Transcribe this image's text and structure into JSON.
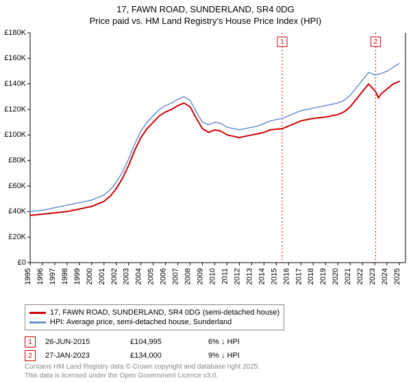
{
  "title": {
    "line1": "17, FAWN ROAD, SUNDERLAND, SR4 0DG",
    "line2": "Price paid vs. HM Land Registry's House Price Index (HPI)"
  },
  "chart": {
    "type": "line",
    "background_color": "#ffffff",
    "axis_color": "#000000",
    "xlim": [
      1995,
      2025.5
    ],
    "ylim": [
      0,
      180000
    ],
    "ytick_step": 20000,
    "yticks": [
      {
        "v": 0,
        "label": "£0"
      },
      {
        "v": 20000,
        "label": "£20K"
      },
      {
        "v": 40000,
        "label": "£40K"
      },
      {
        "v": 60000,
        "label": "£60K"
      },
      {
        "v": 80000,
        "label": "£80K"
      },
      {
        "v": 100000,
        "label": "£100K"
      },
      {
        "v": 120000,
        "label": "£120K"
      },
      {
        "v": 140000,
        "label": "£140K"
      },
      {
        "v": 160000,
        "label": "£160K"
      },
      {
        "v": 180000,
        "label": "£180K"
      }
    ],
    "xticks": [
      1995,
      1996,
      1997,
      1998,
      1999,
      2000,
      2001,
      2002,
      2003,
      2004,
      2005,
      2006,
      2007,
      2008,
      2009,
      2010,
      2011,
      2012,
      2013,
      2014,
      2015,
      2016,
      2017,
      2018,
      2019,
      2020,
      2021,
      2022,
      2023,
      2024,
      2025
    ],
    "series": [
      {
        "id": "subject",
        "label": "17, FAWN ROAD, SUNDERLAND, SR4 0DG (semi-detached house)",
        "color": "#cc0000",
        "width": 2,
        "x": [
          1995,
          1995.5,
          1996,
          1996.5,
          1997,
          1997.5,
          1998,
          1998.5,
          1999,
          1999.5,
          2000,
          2000.5,
          2001,
          2001.5,
          2002,
          2002.5,
          2003,
          2003.5,
          2004,
          2004.5,
          2005,
          2005.5,
          2006,
          2006.5,
          2007,
          2007.5,
          2008,
          2008.5,
          2009,
          2009.5,
          2010,
          2010.5,
          2011,
          2011.5,
          2012,
          2012.5,
          2013,
          2013.5,
          2014,
          2014.5,
          2015,
          2015.48,
          2015.5,
          2016,
          2016.5,
          2017,
          2017.5,
          2018,
          2018.5,
          2019,
          2019.5,
          2020,
          2020.5,
          2021,
          2021.5,
          2022,
          2022.5,
          2023.07,
          2023.3,
          2023.5,
          2024,
          2024.5,
          2025
        ],
        "y": [
          37000,
          37500,
          38000,
          38500,
          39000,
          39500,
          40000,
          41000,
          42000,
          43000,
          44000,
          46000,
          48000,
          52000,
          58000,
          66000,
          76000,
          88000,
          98000,
          105000,
          110000,
          115000,
          118000,
          120000,
          123000,
          125000,
          122000,
          113000,
          105000,
          102000,
          104000,
          103000,
          100000,
          99000,
          98000,
          99000,
          100000,
          101000,
          102000,
          104000,
          104500,
          104995,
          105000,
          107000,
          109000,
          111000,
          112000,
          113000,
          113500,
          114000,
          115000,
          116000,
          118000,
          122000,
          128000,
          134000,
          140000,
          134000,
          129000,
          132000,
          136000,
          140000,
          142000
        ]
      },
      {
        "id": "hpi",
        "label": "HPI: Average price, semi-detached house, Sunderland",
        "color": "#6a8fd0",
        "width": 1.5,
        "x": [
          1995,
          1995.5,
          1996,
          1996.5,
          1997,
          1997.5,
          1998,
          1998.5,
          1999,
          1999.5,
          2000,
          2000.5,
          2001,
          2001.5,
          2002,
          2002.5,
          2003,
          2003.5,
          2004,
          2004.5,
          2005,
          2005.5,
          2006,
          2006.5,
          2007,
          2007.5,
          2008,
          2008.5,
          2009,
          2009.5,
          2010,
          2010.5,
          2011,
          2011.5,
          2012,
          2012.5,
          2013,
          2013.5,
          2014,
          2014.5,
          2015,
          2015.5,
          2016,
          2016.5,
          2017,
          2017.5,
          2018,
          2018.5,
          2019,
          2019.5,
          2020,
          2020.5,
          2021,
          2021.5,
          2022,
          2022.5,
          2023,
          2023.5,
          2024,
          2024.5,
          2025
        ],
        "y": [
          40000,
          40500,
          41000,
          42000,
          43000,
          44000,
          45000,
          46000,
          47000,
          48000,
          49000,
          51000,
          53000,
          57000,
          63000,
          71000,
          81000,
          93000,
          103000,
          110000,
          115000,
          120000,
          123000,
          125000,
          128000,
          130000,
          127000,
          118000,
          110000,
          108000,
          110000,
          109000,
          106000,
          105000,
          104000,
          105000,
          106000,
          107000,
          109000,
          111000,
          112000,
          113000,
          115000,
          117000,
          119000,
          120000,
          121000,
          122000,
          123000,
          124000,
          125000,
          127000,
          131000,
          137000,
          143000,
          149000,
          147000,
          148000,
          150000,
          153000,
          156000
        ]
      }
    ],
    "markers": [
      {
        "n": "1",
        "x": 2015.48,
        "date": "26-JUN-2015",
        "price": "£104,995",
        "diff": "6% ↓ HPI"
      },
      {
        "n": "2",
        "x": 2023.07,
        "date": "27-JAN-2023",
        "price": "£134,000",
        "diff": "9% ↓ HPI"
      }
    ],
    "marker_line_color": "#cc0000",
    "marker_line_dash": "2,3"
  },
  "attribution": {
    "line1": "Contains HM Land Registry data © Crown copyright and database right 2025.",
    "line2": "This data is licensed under the Open Government Licence v3.0."
  }
}
